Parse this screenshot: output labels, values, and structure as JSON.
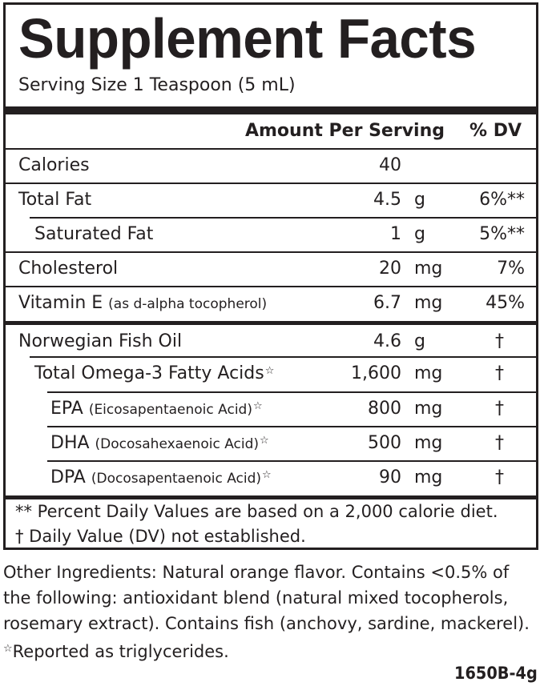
{
  "panel": {
    "title": "Supplement Facts",
    "serving_size": "Serving Size 1 Teaspoon (5 mL)",
    "header": {
      "amount_per_serving": "Amount Per Serving",
      "percent_dv": "% DV"
    },
    "nutrients": [
      {
        "name": "Calories",
        "qualifier": "",
        "amount": "40",
        "unit": "",
        "dv": ""
      },
      {
        "name": "Total Fat",
        "qualifier": "",
        "amount": "4.5",
        "unit": "g",
        "dv": "6%**"
      },
      {
        "name": "Saturated Fat",
        "qualifier": "",
        "amount": "1",
        "unit": "g",
        "dv": "5%**"
      },
      {
        "name": "Cholesterol",
        "qualifier": "",
        "amount": "20",
        "unit": "mg",
        "dv": "7%"
      },
      {
        "name": "Vitamin E ",
        "qualifier": "(as d-alpha tocopherol)",
        "amount": "6.7",
        "unit": "mg",
        "dv": "45%"
      }
    ],
    "ingredients": [
      {
        "name": "Norwegian Fish Oil",
        "qualifier": "",
        "star": "",
        "amount": "4.6",
        "unit": "g",
        "dv": "†"
      },
      {
        "name": "Total Omega-3 Fatty Acids",
        "qualifier": "",
        "star": "☆",
        "amount": "1,600",
        "unit": "mg",
        "dv": "†"
      },
      {
        "name": "EPA ",
        "qualifier": "(Eicosapentaenoic Acid)",
        "star": "☆",
        "amount": "800",
        "unit": "mg",
        "dv": "†"
      },
      {
        "name": "DHA ",
        "qualifier": "(Docosahexaenoic Acid)",
        "star": "☆",
        "amount": "500",
        "unit": "mg",
        "dv": "†"
      },
      {
        "name": "DPA ",
        "qualifier": "(Docosapentaenoic Acid)",
        "star": "☆",
        "amount": "90",
        "unit": "mg",
        "dv": "†"
      }
    ],
    "footnotes": [
      "** Percent Daily Values are based on a 2,000 calorie diet.",
      "† Daily Value (DV) not established."
    ]
  },
  "other_ingredients": {
    "lines": [
      "Other Ingredients: Natural orange flavor. Contains <0.5% of",
      "the following: antioxidant blend (natural mixed tocopherols,",
      "rosemary extract). Contains fish (anchovy, sardine, mackerel)."
    ],
    "star_symbol": "☆",
    "star_note": "Reported as triglycerides."
  },
  "product_code": "1650B-4g"
}
